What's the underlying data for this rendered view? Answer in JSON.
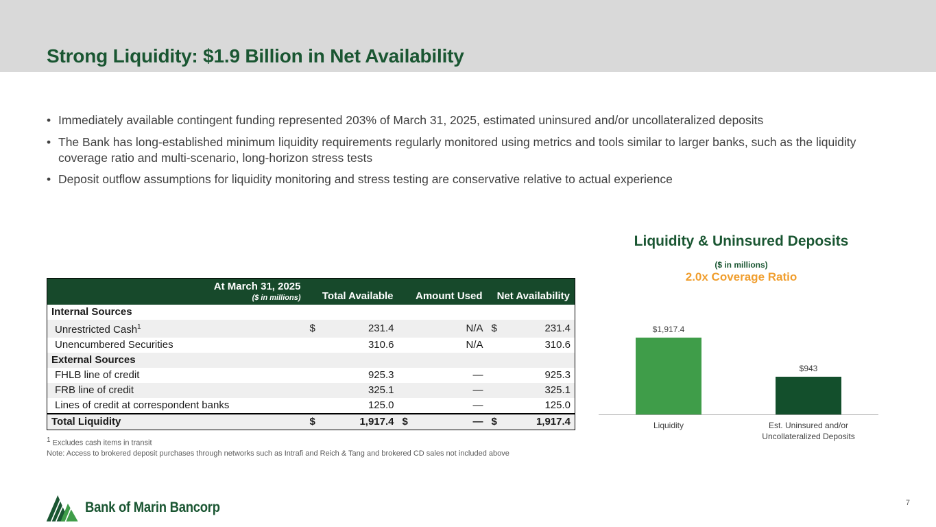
{
  "slide": {
    "title": "Strong Liquidity: $1.9 Billion in Net Availability",
    "page_number": "7"
  },
  "ui": {
    "bullet_marker": "•"
  },
  "colors": {
    "dark_green": "#1a5632",
    "table_header_green": "#17492b",
    "bar_green": "#3f9d49",
    "bar_dark_green": "#134f2c",
    "orange": "#f09e2e",
    "band_gray": "#d9d9d9"
  },
  "bullets": [
    "Immediately available contingent funding represented 203% of March 31, 2025, estimated uninsured and/or uncollateralized deposits",
    "The Bank has long-established minimum liquidity requirements regularly monitored using metrics and tools similar to larger banks, such as the liquidity coverage ratio and multi-scenario, long-horizon stress tests",
    "Deposit outflow assumptions for liquidity monitoring and stress testing are conservative relative to actual experience"
  ],
  "table": {
    "header": {
      "title": "At March 31, 2025",
      "subtitle": "($ in millions)",
      "col_total_available": "Total Available",
      "col_amount_used": "Amount Used",
      "col_net_availability": "Net Availability"
    },
    "rows": [
      {
        "type": "section",
        "label": "Internal Sources",
        "shade": false
      },
      {
        "type": "data",
        "label": "Unrestricted Cash",
        "sup": "1",
        "ta_cur": "$",
        "ta": "231.4",
        "au_cur": "",
        "au": "N/A",
        "na_cur": "$",
        "na": "231.4",
        "shade": true
      },
      {
        "type": "data",
        "label": "Unencumbered Securities",
        "ta_cur": "",
        "ta": "310.6",
        "au_cur": "",
        "au": "N/A",
        "na_cur": "",
        "na": "310.6",
        "shade": false
      },
      {
        "type": "section",
        "label": "External Sources",
        "shade": true
      },
      {
        "type": "data",
        "label": "FHLB line of credit",
        "ta_cur": "",
        "ta": "925.3",
        "au_cur": "",
        "au": "—",
        "na_cur": "",
        "na": "925.3",
        "shade": false
      },
      {
        "type": "data",
        "label": "FRB line of credit",
        "ta_cur": "",
        "ta": "325.1",
        "au_cur": "",
        "au": "—",
        "na_cur": "",
        "na": "325.1",
        "shade": true
      },
      {
        "type": "data",
        "label": "Lines of credit at correspondent banks",
        "ta_cur": "",
        "ta": "125.0",
        "au_cur": "",
        "au": "—",
        "na_cur": "",
        "na": "125.0",
        "shade": false
      },
      {
        "type": "total",
        "label": "Total Liquidity",
        "ta_cur": "$",
        "ta": "1,917.4",
        "au_cur": "$",
        "au": "—",
        "na_cur": "$",
        "na": "1,917.4",
        "shade": true
      }
    ],
    "footnote1_sup": "1",
    "footnote1": "Excludes cash items in transit",
    "footnote2": "Note: Access to brokered deposit purchases through networks such as Intrafi and Reich & Tang and brokered CD sales not included above"
  },
  "chart": {
    "title": "Liquidity & Uninsured Deposits",
    "subtitle": "($ in millions)",
    "coverage_ratio": "2.0x Coverage Ratio"
  },
  "chart_data": {
    "type": "bar",
    "title": "Liquidity & Uninsured Deposits",
    "subtitle": "($ in millions)",
    "annotation": "2.0x Coverage Ratio",
    "categories": [
      "Liquidity",
      "Est. Uninsured and/or Uncollateralized Deposits"
    ],
    "values": [
      1917.4,
      943
    ],
    "value_labels": [
      "$1,917.4",
      "$943"
    ],
    "colors": [
      "#3f9d49",
      "#134f2c"
    ],
    "ylim": [
      0,
      2000
    ],
    "grid": false,
    "legend": false
  },
  "footer": {
    "logo_text": "Bank of Marin Bancorp"
  }
}
